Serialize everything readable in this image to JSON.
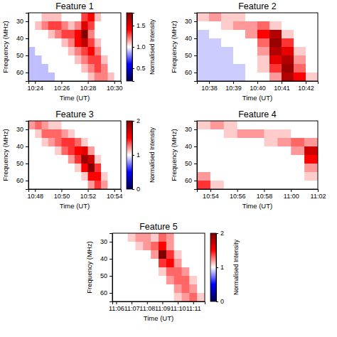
{
  "chart_data": [
    {
      "type": "heatmap",
      "title": "Feature 1",
      "x_label": "Time (UT)",
      "y_label": "Frequency (MHz)",
      "xlim": [
        623.5,
        630.5
      ],
      "xticks": [
        {
          "value": 624,
          "label": "10:24"
        },
        {
          "value": 626,
          "label": "10:26"
        },
        {
          "value": 628,
          "label": "10:28"
        },
        {
          "value": 630,
          "label": "10:30"
        }
      ],
      "ylim": [
        25,
        65
      ],
      "yticks": [
        30,
        40,
        50,
        60
      ],
      "x": [
        623.75,
        624.25,
        624.75,
        625.25,
        625.75,
        626.25,
        626.75,
        627.25,
        627.75,
        628.25,
        628.75,
        629.25,
        629.75,
        630.25
      ],
      "y": [
        27.5,
        32.5,
        37.5,
        42.5,
        47.5,
        52.5,
        57.5,
        62.5
      ],
      "cells": [
        [
          1.0,
          1.0,
          1.1,
          1.1,
          1.1,
          1.0,
          1.0,
          1.0,
          1.3,
          1.4,
          1.1,
          1.0,
          1.0,
          1.0
        ],
        [
          1.0,
          1.1,
          1.2,
          1.3,
          1.3,
          1.2,
          1.1,
          1.2,
          1.5,
          1.3,
          1.0,
          1.0,
          1.0,
          1.0
        ],
        [
          1.0,
          1.0,
          1.0,
          1.1,
          1.2,
          1.3,
          1.3,
          1.4,
          1.8,
          1.2,
          1.0,
          1.0,
          1.0,
          1.0
        ],
        [
          1.0,
          1.0,
          1.0,
          1.0,
          1.0,
          1.1,
          1.2,
          1.4,
          1.6,
          1.3,
          1.1,
          1.0,
          1.0,
          1.0
        ],
        [
          0.9,
          1.0,
          1.0,
          1.0,
          1.0,
          1.0,
          1.1,
          1.2,
          1.3,
          1.4,
          1.2,
          1.0,
          1.0,
          1.0
        ],
        [
          0.9,
          0.9,
          1.0,
          1.0,
          1.0,
          1.0,
          1.0,
          1.1,
          1.2,
          1.3,
          1.3,
          1.1,
          1.0,
          1.0
        ],
        [
          0.9,
          0.9,
          0.9,
          1.0,
          1.0,
          1.0,
          1.0,
          1.0,
          1.1,
          1.2,
          1.3,
          1.2,
          1.0,
          1.0
        ],
        [
          0.9,
          0.9,
          0.9,
          0.9,
          1.0,
          1.0,
          1.0,
          1.0,
          1.0,
          1.1,
          1.2,
          1.2,
          1.1,
          1.0
        ]
      ],
      "clim": [
        0.2,
        1.8
      ],
      "colorbar": {
        "label": "Normalised Intensity",
        "ticks": [
          0.5,
          {
            "value": 1,
            "label": "1.0"
          },
          1.5
        ]
      }
    },
    {
      "type": "heatmap",
      "title": "Feature 2",
      "x_label": "Time (UT)",
      "y_label": "Frequency (MHz)",
      "xlim": [
        637.5,
        642.5
      ],
      "xticks": [
        {
          "value": 638,
          "label": "10:38"
        },
        {
          "value": 639,
          "label": "10:39"
        },
        {
          "value": 640,
          "label": "10:40"
        },
        {
          "value": 641,
          "label": "10:41"
        },
        {
          "value": 642,
          "label": "10:42"
        }
      ],
      "ylim": [
        25,
        65
      ],
      "yticks": [
        30,
        40,
        50,
        60
      ],
      "x": [
        637.75,
        638.25,
        638.75,
        639.25,
        639.75,
        640.25,
        640.75,
        641.25,
        641.75,
        642.25
      ],
      "y": [
        27.5,
        32.5,
        37.5,
        42.5,
        47.5,
        52.5,
        57.5,
        62.5
      ],
      "cells": [
        [
          1.1,
          1.2,
          1.1,
          1.1,
          1.0,
          1.0,
          1.0,
          1.0,
          1.0,
          1.0
        ],
        [
          1.0,
          1.0,
          1.1,
          1.2,
          1.2,
          1.3,
          1.1,
          1.0,
          1.0,
          1.0
        ],
        [
          0.9,
          1.0,
          1.0,
          1.0,
          1.2,
          1.5,
          1.8,
          1.1,
          1.0,
          1.0
        ],
        [
          0.9,
          0.9,
          1.0,
          1.0,
          1.0,
          1.3,
          1.9,
          1.4,
          1.0,
          1.0
        ],
        [
          0.9,
          0.9,
          0.9,
          1.0,
          1.0,
          1.2,
          1.8,
          1.6,
          1.1,
          1.0
        ],
        [
          0.9,
          0.9,
          0.9,
          1.0,
          1.0,
          1.1,
          1.6,
          1.8,
          1.2,
          1.0
        ],
        [
          0.9,
          0.9,
          0.9,
          0.9,
          1.0,
          1.1,
          1.4,
          1.9,
          1.3,
          1.0
        ],
        [
          0.9,
          0.9,
          0.9,
          0.9,
          1.0,
          1.0,
          1.2,
          1.8,
          1.5,
          1.1
        ]
      ],
      "clim": [
        0,
        2
      ]
    },
    {
      "type": "heatmap",
      "title": "Feature 3",
      "x_label": "Time (UT)",
      "y_label": "Frequency (MHz)",
      "xlim": [
        647.5,
        654.5
      ],
      "xticks": [
        {
          "value": 648,
          "label": "10:48"
        },
        {
          "value": 650,
          "label": "10:50"
        },
        {
          "value": 652,
          "label": "10:52"
        },
        {
          "value": 654,
          "label": "10:54"
        }
      ],
      "ylim": [
        25,
        65
      ],
      "yticks": [
        30,
        40,
        50,
        60
      ],
      "x": [
        647.75,
        648.25,
        648.75,
        649.25,
        649.75,
        650.25,
        650.75,
        651.25,
        651.75,
        652.25,
        652.75,
        653.25,
        653.75,
        654.25
      ],
      "y": [
        27.5,
        32.5,
        37.5,
        42.5,
        47.5,
        52.5,
        57.5,
        62.5
      ],
      "cells": [
        [
          1.2,
          1.3,
          1.2,
          1.1,
          1.1,
          1.0,
          1.0,
          1.0,
          1.0,
          1.0,
          1.0,
          1.0,
          1.0,
          1.0
        ],
        [
          1.0,
          1.1,
          1.3,
          1.3,
          1.3,
          1.2,
          1.1,
          1.0,
          1.0,
          1.0,
          1.0,
          1.0,
          1.0,
          1.0
        ],
        [
          1.0,
          1.0,
          1.1,
          1.2,
          1.3,
          1.4,
          1.4,
          1.3,
          1.1,
          1.0,
          1.0,
          1.0,
          1.0,
          1.0
        ],
        [
          1.0,
          1.0,
          1.0,
          1.0,
          1.1,
          1.3,
          1.4,
          1.5,
          1.6,
          1.2,
          1.0,
          1.0,
          1.0,
          1.0
        ],
        [
          1.0,
          1.0,
          1.0,
          1.0,
          1.0,
          1.0,
          1.2,
          1.4,
          1.9,
          1.7,
          1.1,
          1.0,
          1.0,
          1.0
        ],
        [
          1.0,
          1.0,
          1.0,
          1.0,
          1.0,
          1.0,
          1.0,
          1.1,
          1.5,
          2.0,
          1.4,
          1.0,
          1.0,
          1.0
        ],
        [
          1.0,
          1.0,
          1.0,
          1.0,
          1.0,
          1.0,
          1.0,
          1.0,
          1.1,
          1.5,
          1.5,
          1.1,
          1.0,
          1.0
        ],
        [
          1.0,
          1.0,
          1.0,
          1.0,
          1.0,
          1.0,
          1.0,
          1.0,
          1.0,
          1.2,
          1.4,
          1.2,
          1.0,
          1.0
        ]
      ],
      "clim": [
        0,
        2
      ],
      "colorbar": {
        "label": "Normalised Intensity",
        "ticks": [
          0,
          1,
          2
        ]
      }
    },
    {
      "type": "heatmap",
      "title": "Feature 4",
      "x_label": "Time (UT)",
      "y_label": "Frequency (MHz)",
      "xlim": [
        653,
        662
      ],
      "xticks": [
        {
          "value": 654,
          "label": "10:54"
        },
        {
          "value": 656,
          "label": "10:56"
        },
        {
          "value": 658,
          "label": "10:58"
        },
        {
          "value": 660,
          "label": "11:00"
        },
        {
          "value": 662,
          "label": "11:02"
        }
      ],
      "ylim": [
        25,
        65
      ],
      "yticks": [
        30,
        40,
        50,
        60
      ],
      "x": [
        653.5,
        654.5,
        655.5,
        656.5,
        657.5,
        658.5,
        659.5,
        660.5,
        661.5
      ],
      "y": [
        27.5,
        32.5,
        37.5,
        42.5,
        47.5,
        52.5,
        57.5,
        62.5
      ],
      "cells": [
        [
          1.1,
          1.2,
          1.1,
          1.0,
          1.0,
          1.0,
          1.0,
          1.0,
          1.0
        ],
        [
          1.0,
          1.0,
          1.1,
          1.2,
          1.2,
          1.1,
          1.1,
          1.0,
          1.0
        ],
        [
          1.0,
          1.0,
          1.0,
          1.0,
          1.0,
          1.1,
          1.2,
          1.3,
          1.2
        ],
        [
          1.0,
          1.0,
          1.0,
          1.0,
          1.0,
          1.0,
          1.0,
          1.2,
          1.7
        ],
        [
          1.0,
          1.0,
          1.0,
          1.0,
          1.0,
          1.0,
          1.0,
          1.0,
          1.5
        ],
        [
          1.0,
          1.0,
          1.0,
          1.0,
          1.0,
          1.0,
          1.0,
          1.0,
          1.2
        ],
        [
          1.2,
          1.0,
          1.0,
          1.0,
          1.0,
          1.0,
          1.0,
          1.0,
          1.1
        ],
        [
          1.4,
          1.1,
          1.0,
          1.0,
          1.0,
          1.0,
          1.0,
          1.0,
          1.0
        ]
      ],
      "clim": [
        0,
        2
      ]
    },
    {
      "type": "heatmap",
      "title": "Feature 5",
      "x_label": "Time (UT)",
      "y_label": "Frequency (MHz)",
      "xlim": [
        665.75,
        671.75
      ],
      "xticks": [
        {
          "value": 666,
          "label": "11:06"
        },
        {
          "value": 667,
          "label": "11:07"
        },
        {
          "value": 668,
          "label": "11:08"
        },
        {
          "value": 669,
          "label": "11:09"
        },
        {
          "value": 670,
          "label": "11:10"
        },
        {
          "value": 671,
          "label": "11:11"
        }
      ],
      "ylim": [
        25,
        65
      ],
      "yticks": [
        30,
        40,
        50,
        60
      ],
      "x": [
        666,
        666.5,
        667,
        667.5,
        668,
        668.5,
        669,
        669.5,
        670,
        670.5,
        671,
        671.5
      ],
      "y": [
        27.5,
        32.5,
        37.5,
        42.5,
        47.5,
        52.5,
        57.5,
        62.5
      ],
      "cells": [
        [
          1.0,
          1.0,
          1.1,
          1.2,
          1.2,
          1.1,
          1.3,
          1.2,
          1.0,
          1.0,
          1.0,
          1.0
        ],
        [
          1.0,
          1.0,
          1.0,
          1.1,
          1.2,
          1.3,
          1.5,
          1.2,
          1.0,
          1.0,
          1.0,
          1.0
        ],
        [
          1.0,
          1.0,
          1.0,
          1.0,
          1.0,
          1.2,
          2.0,
          1.4,
          1.1,
          1.0,
          1.0,
          1.0
        ],
        [
          1.0,
          1.0,
          1.0,
          1.0,
          1.0,
          1.0,
          1.4,
          1.5,
          1.2,
          1.0,
          1.0,
          1.0
        ],
        [
          1.0,
          1.0,
          1.0,
          1.0,
          1.0,
          1.0,
          1.1,
          1.3,
          1.3,
          1.2,
          1.0,
          1.0
        ],
        [
          1.0,
          1.0,
          1.0,
          1.0,
          1.0,
          1.0,
          1.0,
          1.2,
          1.3,
          1.3,
          1.1,
          1.0
        ],
        [
          1.0,
          1.0,
          1.0,
          1.0,
          1.0,
          1.0,
          1.0,
          1.0,
          1.2,
          1.3,
          1.2,
          1.0
        ],
        [
          1.0,
          1.0,
          1.0,
          1.0,
          1.0,
          1.0,
          1.0,
          1.0,
          1.1,
          1.2,
          1.3,
          1.1
        ]
      ],
      "clim": [
        0,
        2
      ],
      "colorbar": {
        "label": "Normalised Intensity",
        "ticks": [
          0,
          1,
          2
        ]
      }
    }
  ]
}
